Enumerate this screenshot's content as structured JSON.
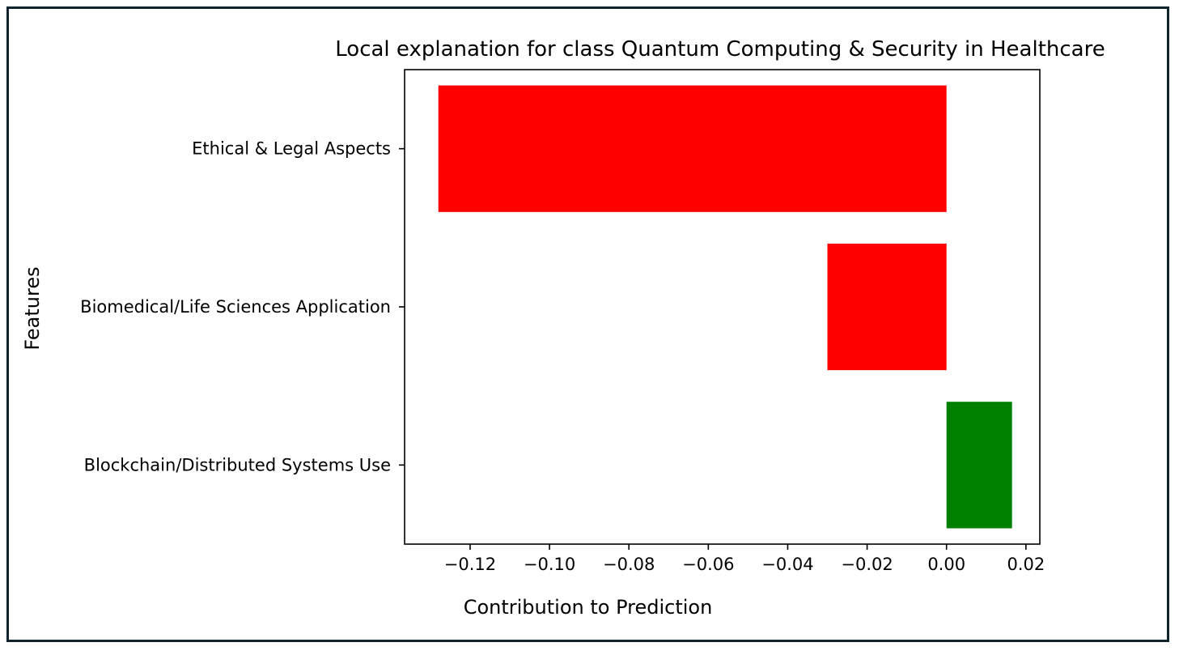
{
  "chart_data": {
    "type": "bar",
    "orientation": "horizontal",
    "title": "Local explanation for class Quantum Computing & Security in Healthcare",
    "xlabel": "Contribution to Prediction",
    "ylabel": "Features",
    "categories": [
      "Ethical & Legal Aspects",
      "Biomedical/Life Sciences Application",
      "Blockchain/Distributed Systems Use"
    ],
    "values": [
      -0.128,
      -0.03,
      0.0165
    ],
    "bar_colors": [
      "#ff0000",
      "#ff0000",
      "#008000"
    ],
    "xlim": [
      -0.1365,
      0.0235
    ],
    "xticks": [
      -0.12,
      -0.1,
      -0.08,
      -0.06,
      -0.04,
      -0.02,
      0.0,
      0.02
    ],
    "xtick_labels": [
      "−0.12",
      "−0.10",
      "−0.08",
      "−0.06",
      "−0.04",
      "−0.02",
      "0.00",
      "0.02"
    ],
    "grid": false,
    "legend": "none"
  }
}
